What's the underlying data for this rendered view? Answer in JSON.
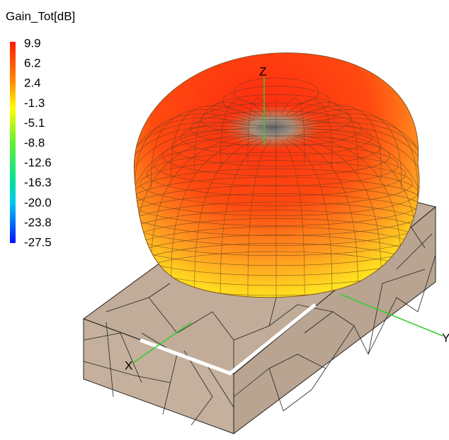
{
  "legend": {
    "title": "Gain_Tot[dB]",
    "ticks": [
      "9.9",
      "6.2",
      "2.4",
      "-1.3",
      "-5.1",
      "-8.8",
      "-12.6",
      "-16.3",
      "-20.0",
      "-23.8",
      "-27.5"
    ]
  },
  "axes": {
    "x": "X",
    "y": "Y",
    "z": "Z"
  }
}
